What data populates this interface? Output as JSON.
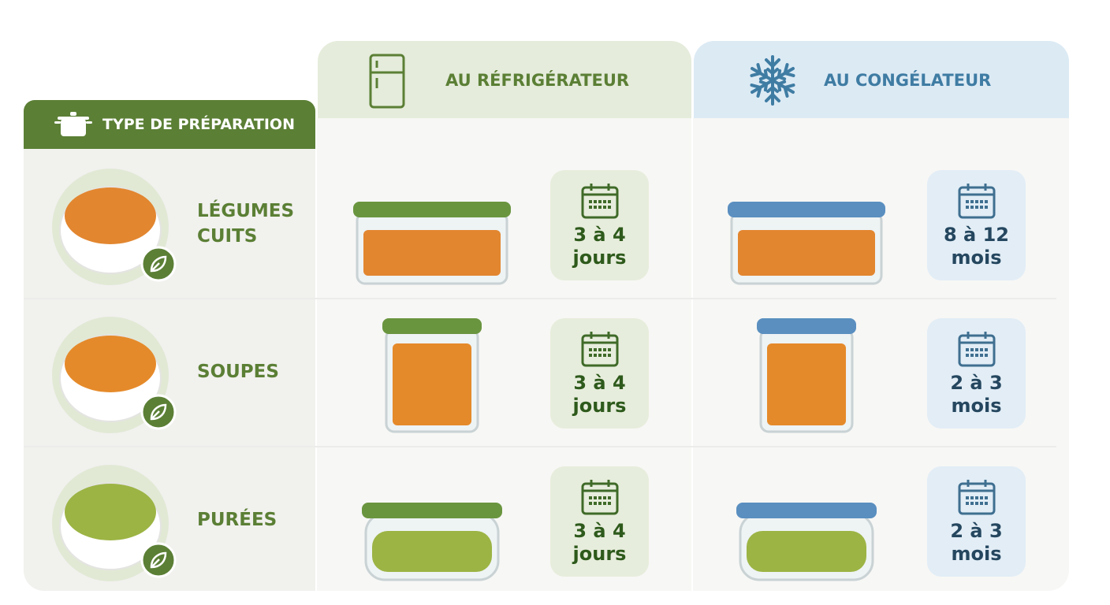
{
  "header": {
    "type_label": "TYPE DE PRÉPARATION",
    "fridge": "AU RÉFRIGÉRATEUR",
    "freezer": "AU CONGÉLATEUR"
  },
  "rows": [
    {
      "label": "LÉGUMES CUITS",
      "fridge": {
        "amount": "3 à 4",
        "unit": "jours"
      },
      "freezer": {
        "amount": "8 à 12",
        "unit": "mois"
      }
    },
    {
      "label": "SOUPES",
      "fridge": {
        "amount": "3 à 4",
        "unit": "jours"
      },
      "freezer": {
        "amount": "2 à 3",
        "unit": "mois"
      }
    },
    {
      "label": "PURÉES",
      "fridge": {
        "amount": "3 à 4",
        "unit": "jours"
      },
      "freezer": {
        "amount": "2 à 3",
        "unit": "mois"
      }
    }
  ]
}
